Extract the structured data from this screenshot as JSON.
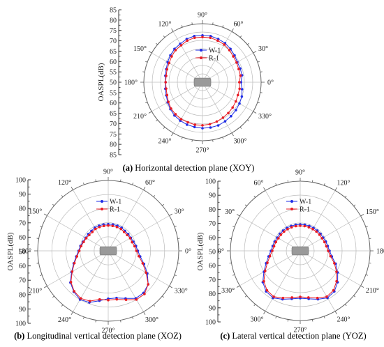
{
  "chart_data": [
    {
      "type": "polar-line",
      "panel": "a",
      "caption_label": "(a)",
      "caption_text": "Horizontal detection plane (XOY)",
      "rlabel": "OASPL(dB)",
      "r_ticks": [
        85,
        80,
        75,
        70,
        65,
        60,
        55,
        50,
        55,
        60,
        65,
        70,
        75,
        80,
        85
      ],
      "rlim": [
        50,
        85
      ],
      "angle_labels": [
        {
          "deg": 0,
          "text": "0°"
        },
        {
          "deg": 30,
          "text": "30°"
        },
        {
          "deg": 60,
          "text": "60°"
        },
        {
          "deg": 90,
          "text": "90°"
        },
        {
          "deg": 120,
          "text": "120°"
        },
        {
          "deg": 150,
          "text": "150°"
        },
        {
          "deg": 180,
          "text": "180°"
        },
        {
          "deg": 210,
          "text": "210°"
        },
        {
          "deg": 240,
          "text": "240°"
        },
        {
          "deg": 270,
          "text": "270°"
        },
        {
          "deg": 300,
          "text": "300°"
        },
        {
          "deg": 330,
          "text": "330°"
        }
      ],
      "legend": [
        "W-1",
        "R-1"
      ],
      "series": [
        {
          "name": "W-1",
          "color": "#1f2ee6",
          "angles": [
            0,
            10,
            20,
            30,
            40,
            50,
            60,
            70,
            80,
            90,
            100,
            110,
            120,
            130,
            140,
            150,
            160,
            170,
            180,
            190,
            200,
            210,
            220,
            230,
            240,
            250,
            260,
            270,
            280,
            290,
            300,
            310,
            320,
            330,
            340,
            350
          ],
          "values": [
            73,
            74,
            74,
            74,
            75,
            76,
            77,
            77.5,
            78,
            78,
            78,
            77.5,
            76.5,
            76,
            75,
            74,
            73,
            72.5,
            72,
            72.5,
            73,
            74,
            75,
            76,
            76.5,
            77,
            77.2,
            77.5,
            77.5,
            77.5,
            77,
            76.5,
            76,
            75.5,
            75,
            74
          ]
        },
        {
          "name": "R-1",
          "color": "#e81c24",
          "angles": [
            0,
            10,
            20,
            30,
            40,
            50,
            60,
            70,
            80,
            90,
            100,
            110,
            120,
            130,
            140,
            150,
            160,
            170,
            180,
            190,
            200,
            210,
            220,
            230,
            240,
            250,
            260,
            270,
            280,
            290,
            300,
            310,
            320,
            330,
            340,
            350
          ],
          "values": [
            72,
            73,
            73,
            73.5,
            74,
            75,
            76,
            76.5,
            77,
            77,
            77,
            76.5,
            75.5,
            75,
            74,
            73,
            72.5,
            72,
            72,
            72,
            72.5,
            73.5,
            74.5,
            75,
            75.5,
            75.5,
            75.8,
            75.8,
            75.5,
            75,
            74.5,
            74,
            73.5,
            73,
            72.5,
            72.5
          ]
        }
      ]
    },
    {
      "type": "polar-line",
      "panel": "b",
      "caption_label": "(b)",
      "caption_text": "Longitudinal vertical detection plane (XOZ)",
      "rlabel": "OASPL(dB)",
      "r_ticks": [
        100,
        90,
        80,
        70,
        60,
        50,
        60,
        70,
        80,
        90,
        100
      ],
      "rlim": [
        50,
        100
      ],
      "angle_labels": [
        {
          "deg": 0,
          "text": "0°"
        },
        {
          "deg": 30,
          "text": "30°"
        },
        {
          "deg": 60,
          "text": "60°"
        },
        {
          "deg": 90,
          "text": "90°"
        },
        {
          "deg": 120,
          "text": "120°"
        },
        {
          "deg": 150,
          "text": "150°"
        },
        {
          "deg": 180,
          "text": "180°"
        },
        {
          "deg": 210,
          "text": "210°"
        },
        {
          "deg": 240,
          "text": "240°"
        },
        {
          "deg": 270,
          "text": "270°"
        },
        {
          "deg": 300,
          "text": "300°"
        },
        {
          "deg": 330,
          "text": "330°"
        }
      ],
      "legend": [
        "W-1",
        "R-1"
      ],
      "series": [
        {
          "name": "W-1",
          "color": "#1f2ee6",
          "angles": [
            0,
            10,
            20,
            30,
            40,
            50,
            60,
            70,
            80,
            90,
            100,
            110,
            120,
            130,
            140,
            150,
            160,
            170,
            180,
            190,
            200,
            210,
            220,
            230,
            240,
            250,
            260,
            270,
            280,
            290,
            300,
            310,
            320,
            330,
            340,
            350
          ],
          "values": [
            71,
            70,
            69,
            68.5,
            68.5,
            68.5,
            69,
            69,
            69,
            69,
            69,
            69,
            69,
            68.5,
            68.5,
            68.5,
            69,
            70,
            71,
            73,
            76,
            80,
            85,
            88,
            90,
            89,
            86,
            84,
            84,
            86,
            89,
            89,
            87,
            82,
            77,
            73
          ]
        },
        {
          "name": "R-1",
          "color": "#e81c24",
          "angles": [
            0,
            10,
            20,
            30,
            40,
            50,
            60,
            70,
            80,
            90,
            100,
            110,
            120,
            130,
            140,
            150,
            160,
            170,
            180,
            190,
            200,
            210,
            220,
            230,
            240,
            250,
            260,
            270,
            280,
            290,
            300,
            310,
            320,
            330,
            340,
            350
          ],
          "values": [
            70,
            69,
            68,
            68,
            67.5,
            67.5,
            68,
            68,
            68,
            68,
            68,
            68,
            68,
            67.5,
            67.5,
            68,
            68.5,
            69.5,
            70.5,
            72.5,
            75.5,
            79.5,
            84.5,
            87.5,
            89,
            88,
            85,
            85,
            85,
            87,
            90,
            90,
            87,
            81,
            76,
            72
          ]
        }
      ]
    },
    {
      "type": "polar-line",
      "panel": "c",
      "caption_label": "(c)",
      "caption_text": "Lateral vertical detection plane (YOZ)",
      "rlabel": "OASPL(dB)",
      "r_ticks": [
        100,
        90,
        80,
        70,
        60,
        50,
        60,
        70,
        80,
        90,
        100
      ],
      "rlim": [
        50,
        100
      ],
      "angle_labels": [
        {
          "deg": 0,
          "text": "180°"
        },
        {
          "deg": 30,
          "text": "150°"
        },
        {
          "deg": 60,
          "text": "120°"
        },
        {
          "deg": 90,
          "text": "90°"
        },
        {
          "deg": 120,
          "text": "60°"
        },
        {
          "deg": 150,
          "text": "30°"
        },
        {
          "deg": 180,
          "text": "0°"
        },
        {
          "deg": 210,
          "text": "330°"
        },
        {
          "deg": 240,
          "text": "300°"
        },
        {
          "deg": 270,
          "text": "270°"
        },
        {
          "deg": 300,
          "text": "240°"
        },
        {
          "deg": 330,
          "text": "210°"
        }
      ],
      "legend": [
        "W-1",
        "R-1"
      ],
      "series": [
        {
          "name": "W-1",
          "color": "#1f2ee6",
          "angles": [
            0,
            10,
            20,
            30,
            40,
            50,
            60,
            70,
            80,
            90,
            100,
            110,
            120,
            130,
            140,
            150,
            160,
            170,
            180,
            190,
            200,
            210,
            220,
            230,
            240,
            250,
            260,
            270,
            280,
            290,
            300,
            310,
            320,
            330,
            340,
            350
          ],
          "values": [
            71,
            70,
            69.5,
            69,
            69,
            69,
            69,
            69,
            69,
            69,
            69,
            69,
            69,
            69,
            69,
            69,
            69.5,
            70,
            71,
            73,
            76,
            80,
            85,
            88,
            89,
            87,
            85,
            84,
            85,
            87,
            89,
            88,
            85,
            81,
            77,
            73
          ]
        },
        {
          "name": "R-1",
          "color": "#e81c24",
          "angles": [
            0,
            10,
            20,
            30,
            40,
            50,
            60,
            70,
            80,
            90,
            100,
            110,
            120,
            130,
            140,
            150,
            160,
            170,
            180,
            190,
            200,
            210,
            220,
            230,
            240,
            250,
            260,
            270,
            280,
            290,
            300,
            310,
            320,
            330,
            340,
            350
          ],
          "values": [
            70,
            69,
            68.5,
            68,
            68,
            68,
            68,
            68,
            68,
            68,
            68,
            68,
            68,
            68,
            68,
            68,
            68.5,
            69,
            70,
            72,
            75,
            79,
            84,
            87,
            88,
            86,
            84,
            83,
            84,
            86,
            88,
            87,
            84,
            80,
            76,
            72
          ]
        }
      ]
    }
  ]
}
